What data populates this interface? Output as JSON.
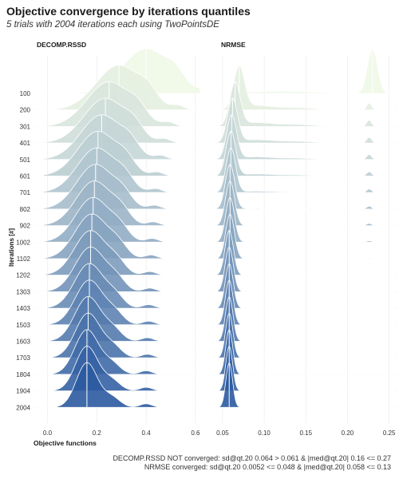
{
  "title": "Objective convergence by iterations quantiles",
  "subtitle": "5 trials with 2004 iterations each using TwoPointsDE",
  "caption_lines": [
    "DECOMP.RSSD NOT converged: sd@qt.20 0.064 > 0.061 & |med@qt.20| 0.16 <= 0.27",
    "NRMSE converged: sd@qt.20 0.0052 <= 0.048 & |med@qt.20| 0.058 <= 0.13"
  ],
  "chart_data": {
    "type": "ridgeline",
    "title": "Objective convergence by iterations quantiles",
    "subtitle": "5 trials with 2004 iterations each using TwoPointsDE",
    "xlabel": "Objective functions",
    "ylabel": "Iterations [#]",
    "iteration_bins": [
      "100",
      "200",
      "301",
      "401",
      "501",
      "601",
      "701",
      "802",
      "902",
      "1002",
      "1102",
      "1202",
      "1303",
      "1403",
      "1503",
      "1603",
      "1703",
      "1804",
      "1904",
      "2004"
    ],
    "panels": [
      {
        "name": "DECOMP.RSSD",
        "xlim": [
          -0.05,
          0.72
        ],
        "xticks": [
          0.0,
          0.2,
          0.4,
          0.6
        ],
        "xtick_labels": [
          "0.0",
          "0.2",
          "0.4",
          "0.6"
        ],
        "medians": [
          0.4,
          0.29,
          0.25,
          0.235,
          0.22,
          0.205,
          0.2,
          0.195,
          0.19,
          0.185,
          0.18,
          0.175,
          0.175,
          0.17,
          0.17,
          0.165,
          0.165,
          0.16,
          0.16,
          0.16
        ]
      },
      {
        "name": "NRMSE",
        "xlim": [
          0.03,
          0.258
        ],
        "xticks": [
          0.05,
          0.1,
          0.15,
          0.2,
          0.25
        ],
        "xtick_labels": [
          "0.05",
          "0.10",
          "0.15",
          "0.20",
          "0.25"
        ],
        "medians": [
          0.23,
          0.07,
          0.065,
          0.062,
          0.061,
          0.06,
          0.06,
          0.059,
          0.059,
          0.059,
          0.059,
          0.058,
          0.058,
          0.058,
          0.058,
          0.058,
          0.058,
          0.058,
          0.058,
          0.058
        ]
      }
    ],
    "palette": [
      "#eef7e4",
      "#2b5aa0"
    ],
    "grid": true,
    "legend": "none"
  }
}
